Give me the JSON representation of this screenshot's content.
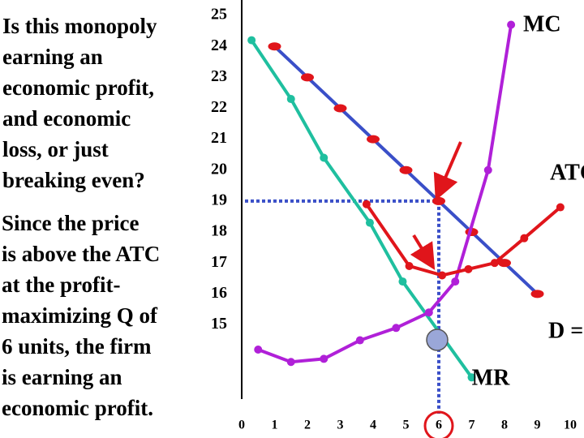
{
  "question_lines": [
    "Is this monopoly",
    "earning an",
    "economic profit,",
    "and economic",
    "loss, or just",
    "breaking even?"
  ],
  "answer_lines": [
    "Since the price",
    "is above the ATC",
    "at the profit-",
    "maximizing Q of",
    "6 units, the firm",
    "is earning an",
    "economic profit."
  ],
  "chart_data": {
    "type": "line",
    "xlim": [
      0,
      10
    ],
    "xticks": [
      0,
      1,
      2,
      3,
      4,
      5,
      6,
      7,
      8,
      9,
      10
    ],
    "ylim": [
      12.6,
      25.5
    ],
    "yticks": [
      15,
      16,
      17,
      18,
      19,
      20,
      21,
      22,
      23,
      24,
      25
    ],
    "series": [
      {
        "name": "D = P",
        "color": "#3a4fc8",
        "marker_color": "#e0151b",
        "x": [
          1,
          2,
          3,
          4,
          5,
          6,
          7,
          8,
          9
        ],
        "values": [
          24,
          23,
          22,
          21,
          20,
          19,
          18,
          17,
          16
        ]
      },
      {
        "name": "MR",
        "color": "#1fbf9f",
        "marker_color": "#1fbf9f",
        "x": [
          0.3,
          1.5,
          2.5,
          3.9,
          4.9,
          7
        ],
        "values": [
          24.2,
          22.3,
          20.4,
          18.3,
          16.4,
          13.3
        ]
      },
      {
        "name": "MC",
        "color": "#b020d8",
        "marker_color": "#b020d8",
        "x": [
          0.5,
          1.5,
          2.5,
          3.6,
          4.7,
          5.7,
          6.5,
          7.5,
          8.2
        ],
        "values": [
          14.2,
          13.8,
          13.9,
          14.5,
          14.9,
          15.4,
          16.4,
          20,
          24.7
        ]
      },
      {
        "name": "ATC",
        "color": "#e0151b",
        "marker_color": "#e0151b",
        "x": [
          3.8,
          5.1,
          6.1,
          6.9,
          7.7,
          8.6,
          9.7
        ],
        "values": [
          18.9,
          16.9,
          16.6,
          16.8,
          17,
          17.8,
          18.8
        ]
      }
    ],
    "marked_point": {
      "x": 6,
      "y": 19
    }
  }
}
